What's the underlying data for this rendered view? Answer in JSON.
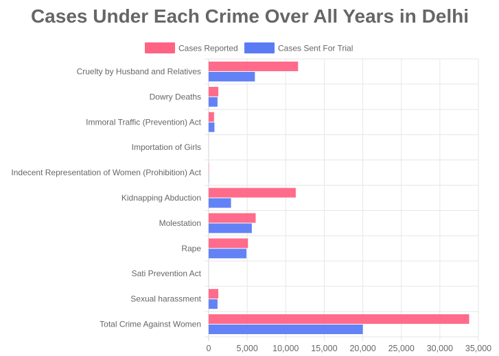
{
  "chart_data": {
    "type": "bar",
    "orientation": "horizontal",
    "title": "Cases Under Each Crime Over All Years in Delhi",
    "xlabel": "",
    "ylabel": "",
    "categories": [
      "Cruelty by Husband and Relatives",
      "Dowry Deaths",
      "Immoral Traffic (Prevention) Act",
      "Importation of Girls",
      "Indecent Representation of Women (Prohibition) Act",
      "Kidnapping Abduction",
      "Molestation",
      "Rape",
      "Sati Prevention Act",
      "Sexual harassment",
      "Total Crime Against Women"
    ],
    "series": [
      {
        "name": "Cases Reported",
        "color": "#ff6384",
        "values": [
          11600,
          1250,
          700,
          0,
          40,
          11300,
          6100,
          5100,
          0,
          1250,
          33800
        ]
      },
      {
        "name": "Cases Sent For Trial",
        "color": "#5b7bf5",
        "values": [
          6000,
          1150,
          750,
          0,
          30,
          2900,
          5600,
          4900,
          0,
          1150,
          20000
        ]
      }
    ],
    "xlim": [
      0,
      35000
    ],
    "x_ticks": [
      "0",
      "5,000",
      "10,000",
      "15,000",
      "20,000",
      "25,000",
      "30,000",
      "35,000"
    ],
    "grid": true,
    "legend_position": "top"
  }
}
